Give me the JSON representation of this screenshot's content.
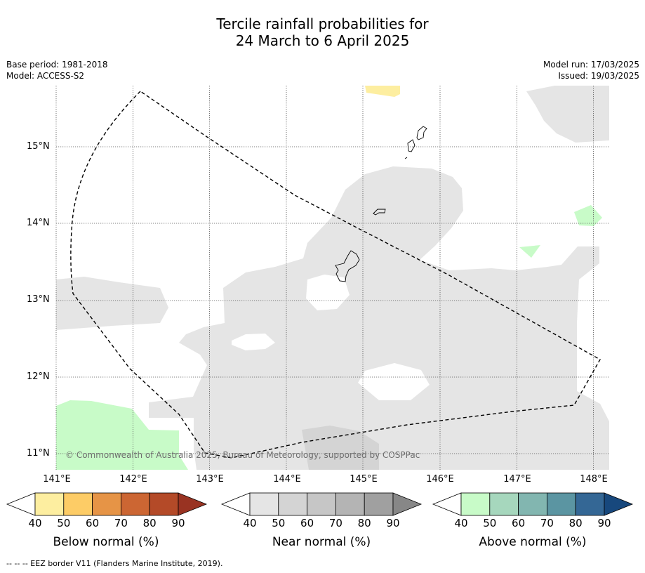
{
  "title": {
    "line1": "Tercile rainfall probabilities for",
    "line2": "24 March to 6 April 2025"
  },
  "meta_left": {
    "base_period": "Base period: 1981-2018",
    "model": "Model: ACCESS-S2"
  },
  "meta_right": {
    "model_run": "Model run: 17/03/2025",
    "issued": "Issued: 19/03/2025"
  },
  "map": {
    "lat_labels": [
      "15°N",
      "14°N",
      "13°N",
      "12°N",
      "11°N"
    ],
    "lon_labels": [
      "141°E",
      "142°E",
      "143°E",
      "144°E",
      "145°E",
      "146°E",
      "147°E",
      "148°E"
    ],
    "copyright": "© Commonwealth of Australia 2025, Bureau of Meteorology, supported by COSPPac",
    "colors": {
      "near_normal_40": "#e5e5e5",
      "near_normal_50": "#d4d4d4",
      "below_normal_40": "#fdeea0",
      "above_normal_40": "#c8fbc8",
      "coast": "#000000",
      "eez_border": "#000000"
    }
  },
  "colorbars": [
    {
      "title": "Below normal (%)",
      "ticks": [
        "40",
        "50",
        "60",
        "70",
        "80",
        "90"
      ],
      "colors": [
        "#fdeea0",
        "#fdcc66",
        "#e69446",
        "#cc6633",
        "#b44a28",
        "#993322"
      ]
    },
    {
      "title": "Near normal (%)",
      "ticks": [
        "40",
        "50",
        "60",
        "70",
        "80",
        "90"
      ],
      "colors": [
        "#e5e5e5",
        "#d4d4d4",
        "#c6c6c6",
        "#b4b4b4",
        "#a0a0a0",
        "#878787"
      ]
    },
    {
      "title": "Above normal (%)",
      "ticks": [
        "40",
        "50",
        "60",
        "70",
        "80",
        "90"
      ],
      "colors": [
        "#c8fbc8",
        "#a6d7bd",
        "#82b6b0",
        "#5b95a2",
        "#346795",
        "#17487d"
      ]
    }
  ],
  "footnote": "--  --  -- EEZ border V11 (Flanders Marine Institute, 2019)."
}
